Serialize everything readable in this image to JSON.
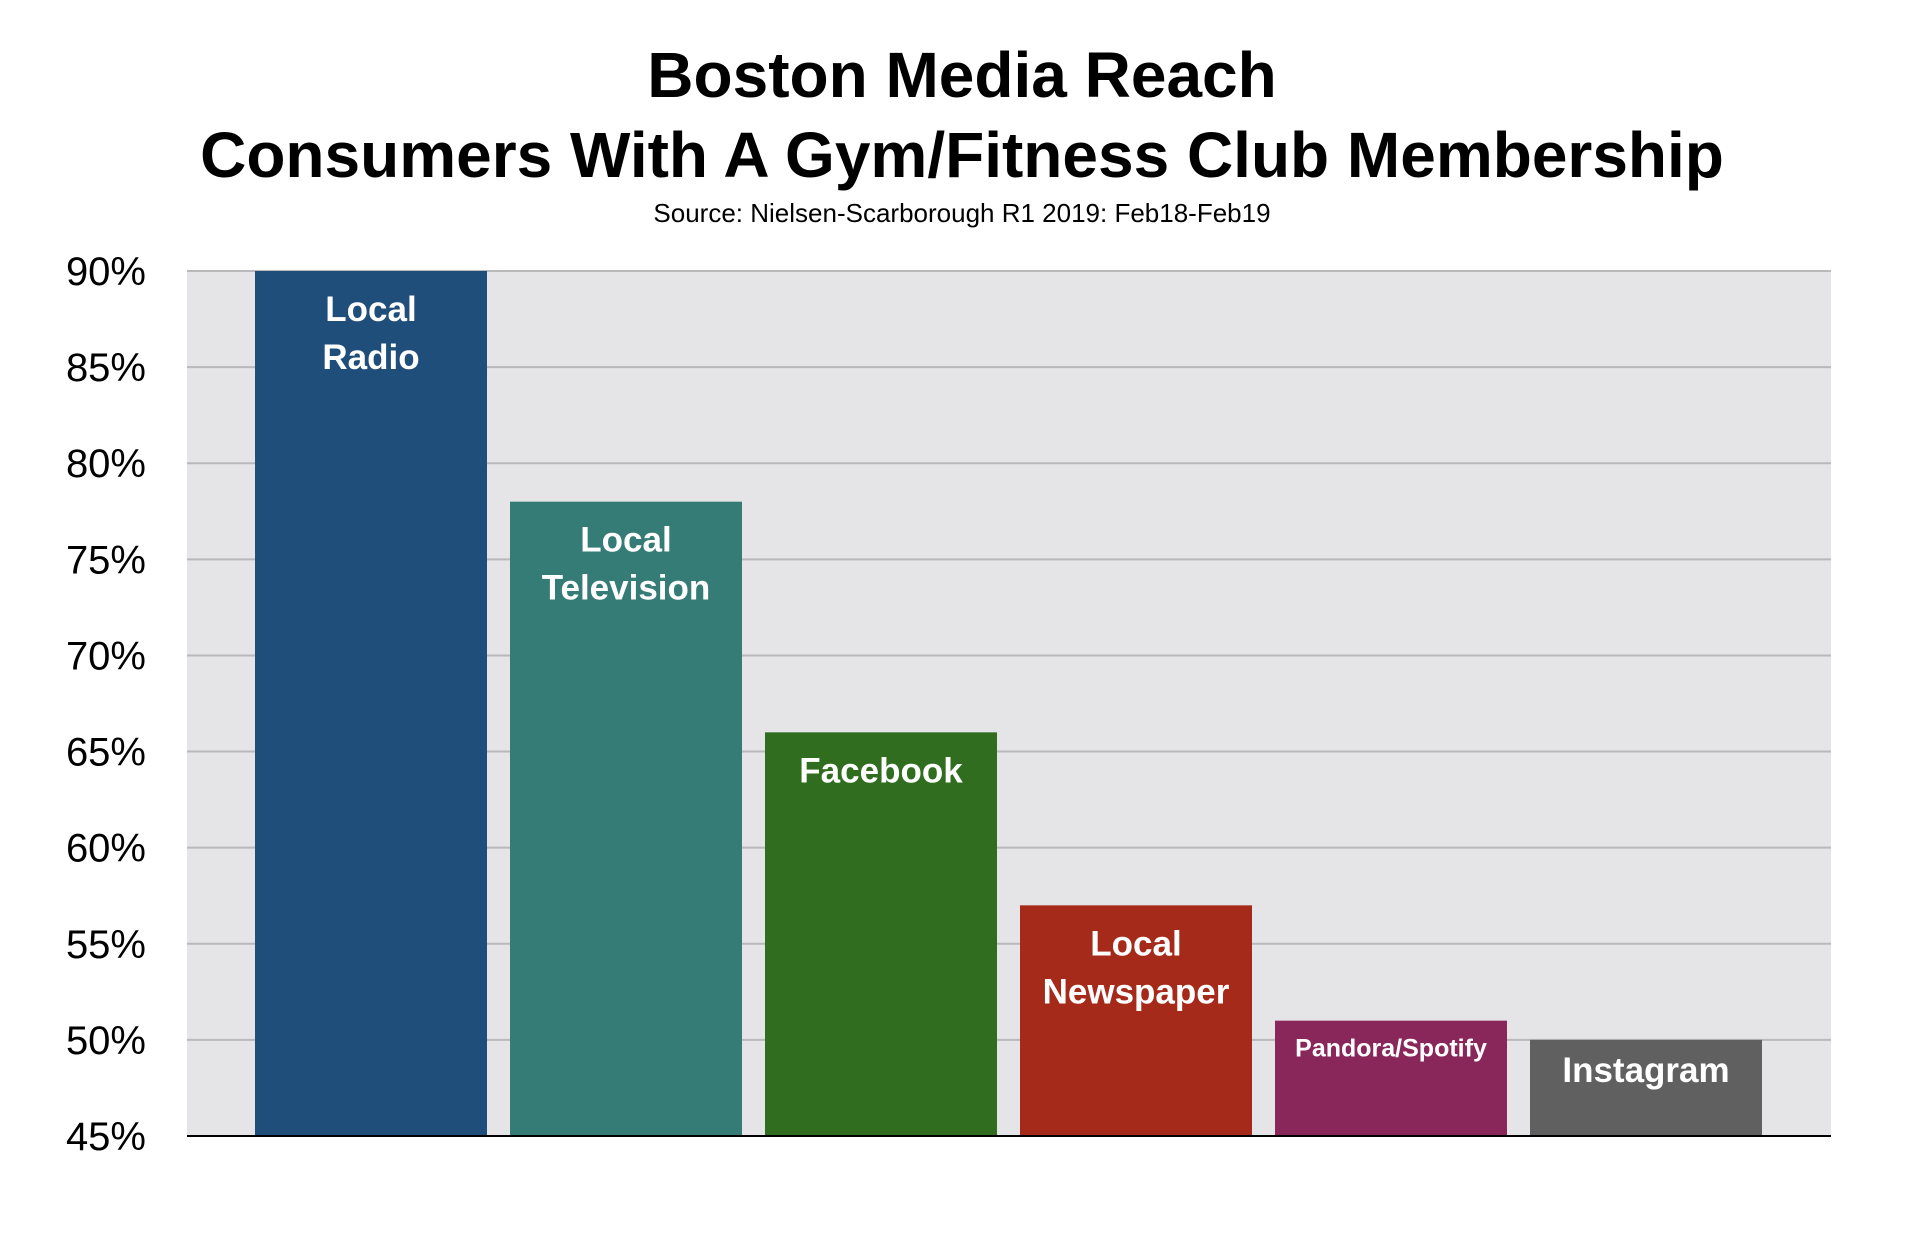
{
  "chart_data": {
    "type": "bar",
    "title": "Boston Media Reach",
    "subtitle": "Consumers With A Gym/Fitness Club Membership",
    "source": "Source: Nielsen-Scarborough R1 2019: Feb18-Feb19",
    "categories": [
      [
        "Local",
        "Radio"
      ],
      [
        "Local",
        "Television"
      ],
      [
        "Facebook"
      ],
      [
        "Local",
        "Newspaper"
      ],
      [
        "Pandora/Spotify"
      ],
      [
        "Instagram"
      ]
    ],
    "values": [
      90,
      78,
      66,
      57,
      51,
      50
    ],
    "colors": [
      "#1f4e7a",
      "#357b76",
      "#316d1f",
      "#a52a1a",
      "#8a275a",
      "#606060"
    ],
    "ylim": [
      45,
      90
    ],
    "yticks": [
      45,
      50,
      55,
      60,
      65,
      70,
      75,
      80,
      85,
      90
    ],
    "ytick_labels": [
      "45%",
      "50%",
      "55%",
      "60%",
      "65%",
      "70%",
      "75%",
      "80%",
      "85%",
      "90%"
    ],
    "xlabel": "",
    "ylabel": "",
    "grid": true,
    "legend": "none"
  }
}
